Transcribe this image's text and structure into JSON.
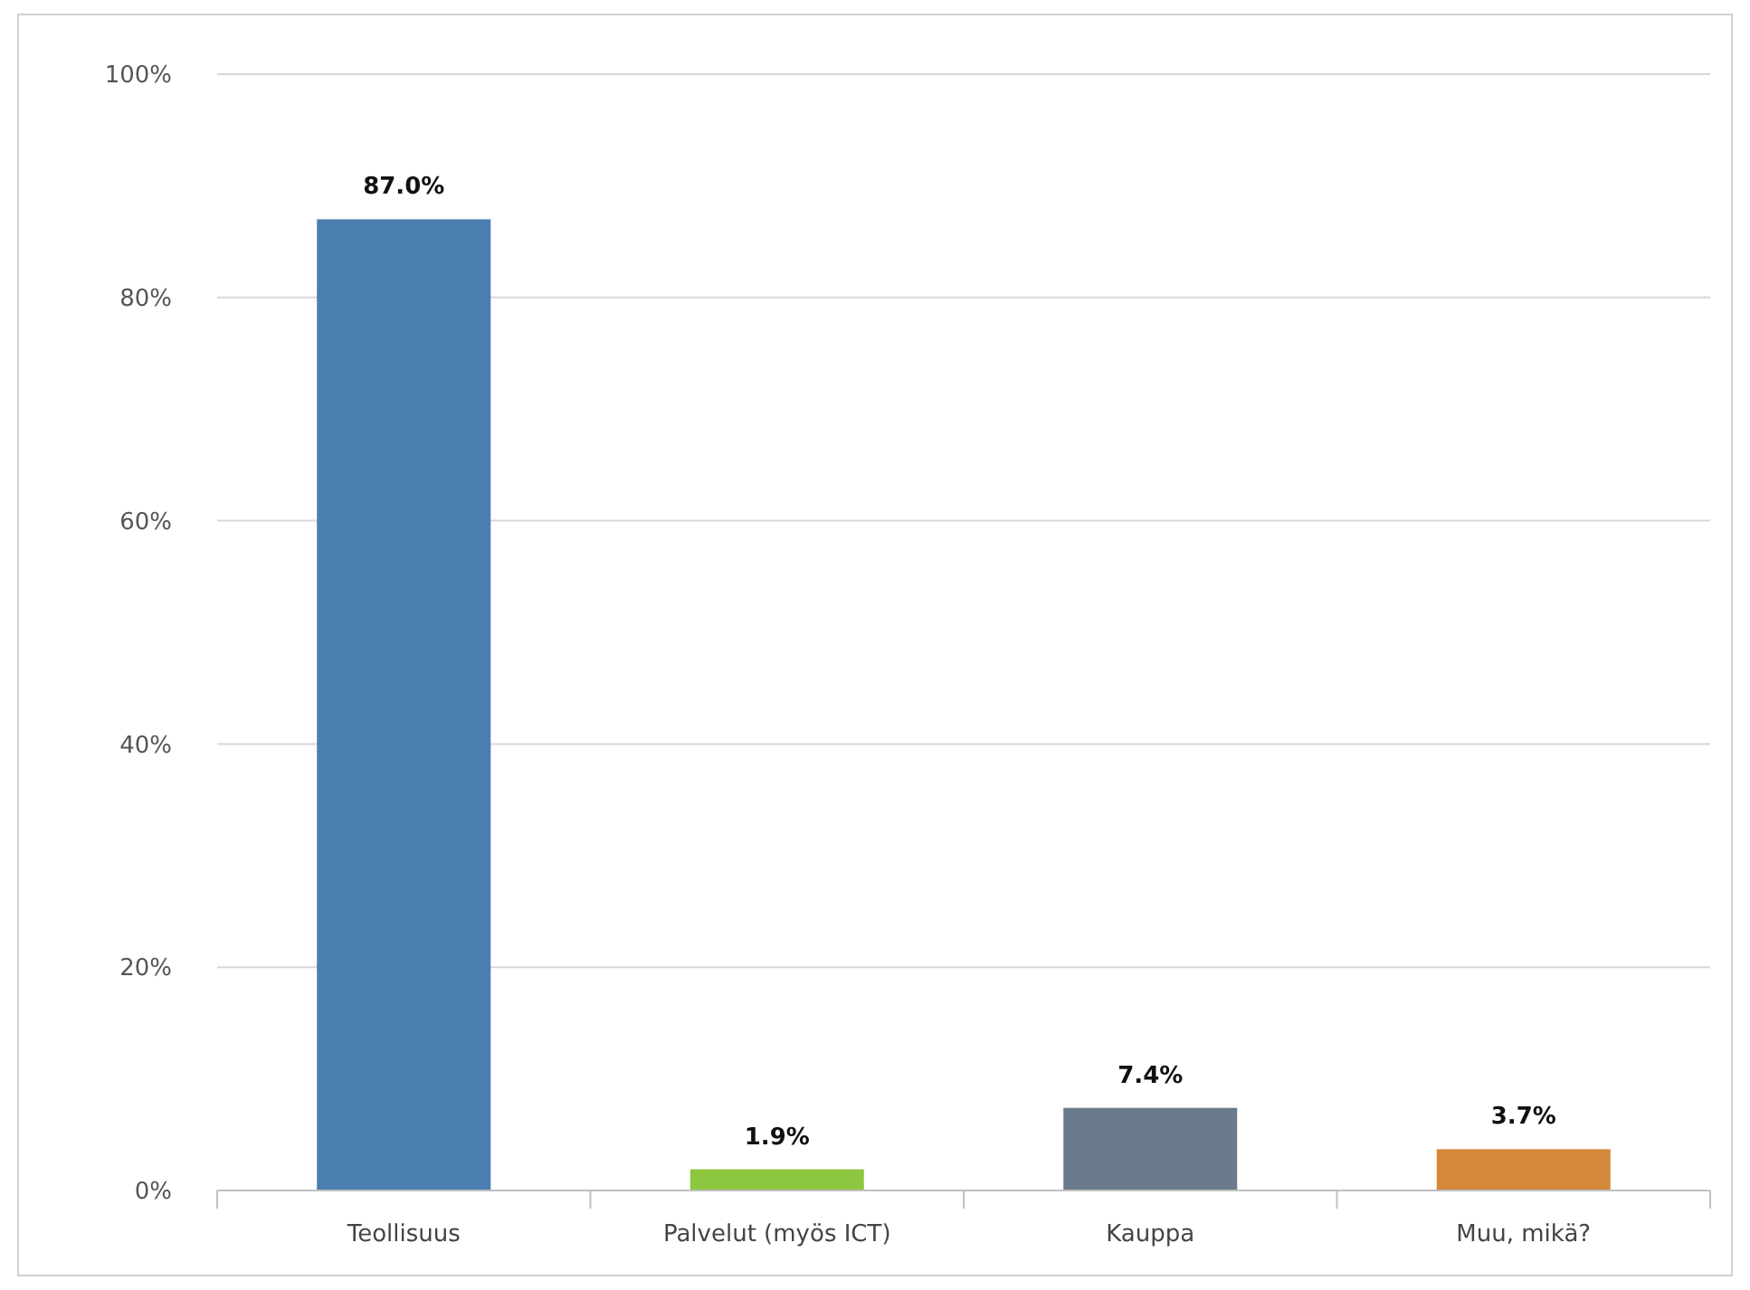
{
  "chart_data": {
    "type": "bar",
    "categories": [
      "Teollisuus",
      "Palvelut (myös ICT)",
      "Kauppa",
      "Muu, mikä?"
    ],
    "values": [
      87.0,
      1.9,
      7.4,
      3.7
    ],
    "colors": [
      "#4a7eb0",
      "#8dc63f",
      "#6b7b8c",
      "#d4893a"
    ],
    "value_labels": [
      "87.0%",
      "1.9%",
      "7.4%",
      "3.7%"
    ],
    "ylim": [
      0,
      100
    ],
    "yticks": [
      {
        "value": 0,
        "label": "0%"
      },
      {
        "value": 20,
        "label": "20%"
      },
      {
        "value": 40,
        "label": "40%"
      },
      {
        "value": 60,
        "label": "60%"
      },
      {
        "value": 80,
        "label": "80%"
      },
      {
        "value": 100,
        "label": "100%"
      }
    ],
    "grid": "y"
  }
}
